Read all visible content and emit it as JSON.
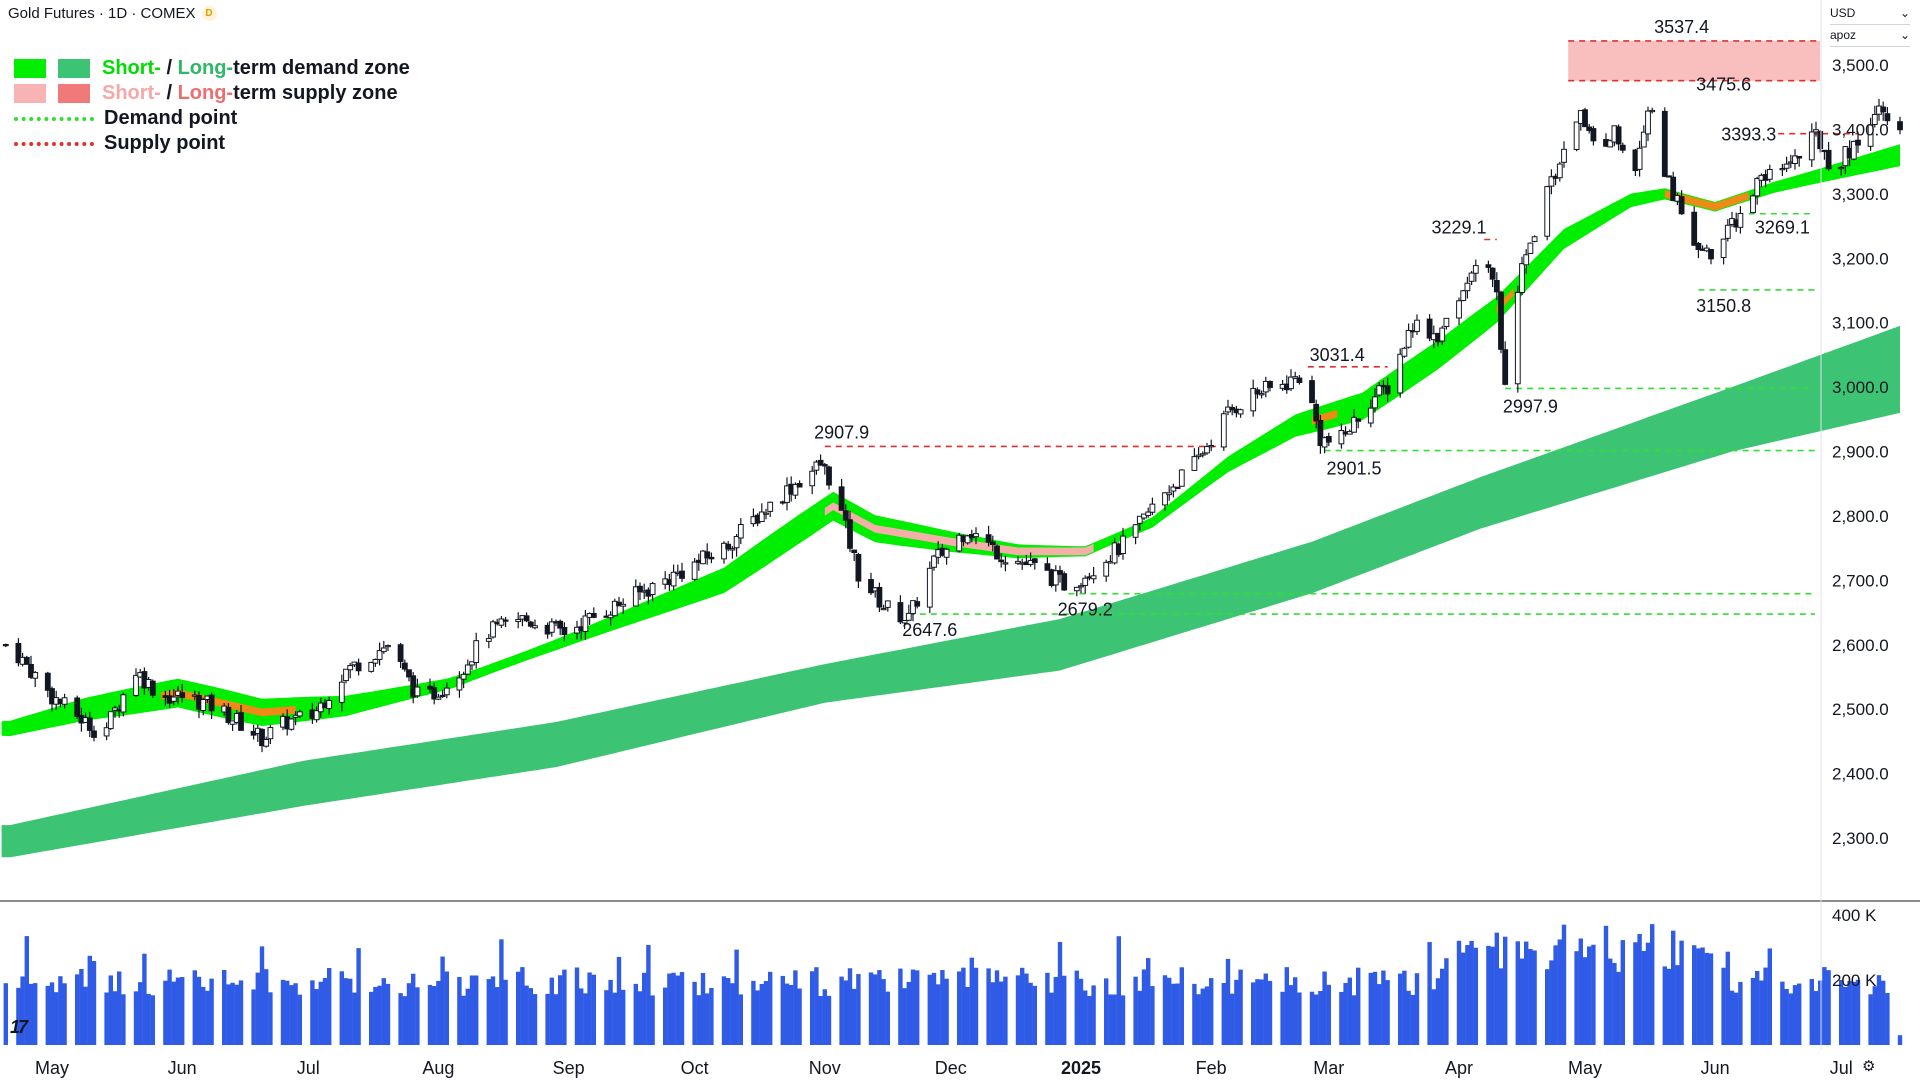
{
  "header": {
    "title": "Gold Futures · 1D · COMEX",
    "badge": "D"
  },
  "price_scale": {
    "currency": "USD",
    "mode": "apoz"
  },
  "legend": {
    "demand_zone": {
      "short": "Short-",
      "sep": " / ",
      "long": "Long-",
      "rest": "term demand zone"
    },
    "supply_zone": {
      "short": "Short-",
      "sep": " / ",
      "long": "Long-",
      "rest": "term supply zone"
    },
    "demand_point": "Demand point",
    "supply_point": "Supply point"
  },
  "colors": {
    "short_demand": "#00ee00",
    "long_demand": "#3cc474",
    "short_supply": "#f8b4b4",
    "long_supply": "#f07a7a",
    "demand_point": "#33dd33",
    "supply_point": "#e03030",
    "volume": "#2f5be6",
    "orange": "#ef8a17"
  },
  "footer": {
    "logo": "17"
  },
  "chart_data": {
    "type": "candlestick",
    "instrument": "Gold Futures",
    "interval": "1D",
    "exchange": "COMEX",
    "ylim": [
      2220,
      3560
    ],
    "yticks": [
      "2,300.0",
      "2,400.0",
      "2,500.0",
      "2,600.0",
      "2,700.0",
      "2,800.0",
      "2,900.0",
      "3,000.0",
      "3,100.0",
      "3,200.0",
      "3,300.0",
      "3,400.0",
      "3,500.0"
    ],
    "ytick_values": [
      2300,
      2400,
      2500,
      2600,
      2700,
      2800,
      2900,
      3000,
      3100,
      3200,
      3300,
      3400,
      3500
    ],
    "xticks": [
      "May",
      "Jun",
      "Jul",
      "Aug",
      "Sep",
      "Oct",
      "Nov",
      "Dec",
      "2025",
      "Feb",
      "Mar",
      "Apr",
      "May",
      "Jun",
      "Jul"
    ],
    "xtick_days": [
      0,
      31,
      61,
      92,
      123,
      153,
      184,
      214,
      245,
      276,
      304,
      335,
      365,
      396,
      426
    ],
    "x_start": "2024-05-01",
    "price_anchors": [
      [
        -10,
        2600
      ],
      [
        0,
        2520
      ],
      [
        12,
        2460
      ],
      [
        20,
        2560
      ],
      [
        26,
        2520
      ],
      [
        32,
        2520
      ],
      [
        40,
        2500
      ],
      [
        50,
        2455
      ],
      [
        56,
        2480
      ],
      [
        62,
        2490
      ],
      [
        70,
        2560
      ],
      [
        80,
        2600
      ],
      [
        88,
        2510
      ],
      [
        96,
        2550
      ],
      [
        104,
        2620
      ],
      [
        112,
        2640
      ],
      [
        122,
        2620
      ],
      [
        134,
        2660
      ],
      [
        146,
        2700
      ],
      [
        160,
        2750
      ],
      [
        168,
        2800
      ],
      [
        175,
        2840
      ],
      [
        183,
        2880
      ],
      [
        186,
        2850
      ],
      [
        192,
        2710
      ],
      [
        198,
        2660
      ],
      [
        204,
        2640
      ],
      [
        210,
        2730
      ],
      [
        218,
        2780
      ],
      [
        226,
        2740
      ],
      [
        234,
        2720
      ],
      [
        242,
        2690
      ],
      [
        248,
        2720
      ],
      [
        256,
        2760
      ],
      [
        264,
        2830
      ],
      [
        272,
        2880
      ],
      [
        280,
        2960
      ],
      [
        286,
        2990
      ],
      [
        292,
        3000
      ],
      [
        298,
        3020
      ],
      [
        302,
        2920
      ],
      [
        306,
        2910
      ],
      [
        314,
        2980
      ],
      [
        318,
        3000
      ],
      [
        324,
        3100
      ],
      [
        330,
        3080
      ],
      [
        336,
        3150
      ],
      [
        340,
        3210
      ],
      [
        344,
        3140
      ],
      [
        346,
        3000
      ],
      [
        350,
        3180
      ],
      [
        356,
        3300
      ],
      [
        362,
        3410
      ],
      [
        364,
        3430
      ],
      [
        368,
        3360
      ],
      [
        372,
        3400
      ],
      [
        376,
        3310
      ],
      [
        382,
        3470
      ],
      [
        384,
        3330
      ],
      [
        388,
        3270
      ],
      [
        392,
        3220
      ],
      [
        396,
        3200
      ],
      [
        400,
        3250
      ],
      [
        404,
        3300
      ],
      [
        410,
        3340
      ],
      [
        416,
        3360
      ],
      [
        420,
        3390
      ],
      [
        424,
        3340
      ],
      [
        430,
        3380
      ],
      [
        432,
        3410
      ],
      [
        436,
        3440
      ],
      [
        440,
        3390
      ]
    ],
    "ma_anchors": [
      [
        -10,
        2470
      ],
      [
        8,
        2500
      ],
      [
        30,
        2525
      ],
      [
        50,
        2495
      ],
      [
        70,
        2505
      ],
      [
        95,
        2540
      ],
      [
        120,
        2600
      ],
      [
        140,
        2650
      ],
      [
        160,
        2700
      ],
      [
        178,
        2780
      ],
      [
        186,
        2815
      ],
      [
        196,
        2780
      ],
      [
        214,
        2760
      ],
      [
        230,
        2745
      ],
      [
        246,
        2745
      ],
      [
        262,
        2790
      ],
      [
        280,
        2880
      ],
      [
        296,
        2940
      ],
      [
        312,
        2970
      ],
      [
        330,
        3050
      ],
      [
        344,
        3120
      ],
      [
        360,
        3230
      ],
      [
        376,
        3290
      ],
      [
        384,
        3300
      ],
      [
        396,
        3280
      ],
      [
        410,
        3310
      ],
      [
        440,
        3360
      ]
    ],
    "long_band_top": [
      [
        -10,
        2320
      ],
      [
        60,
        2420
      ],
      [
        120,
        2480
      ],
      [
        184,
        2570
      ],
      [
        240,
        2640
      ],
      [
        300,
        2760
      ],
      [
        340,
        2860
      ],
      [
        400,
        3000
      ],
      [
        440,
        3095
      ]
    ],
    "long_band_bottom": [
      [
        -10,
        2270
      ],
      [
        60,
        2350
      ],
      [
        120,
        2410
      ],
      [
        184,
        2510
      ],
      [
        240,
        2560
      ],
      [
        300,
        2680
      ],
      [
        340,
        2780
      ],
      [
        400,
        2900
      ],
      [
        440,
        2960
      ]
    ],
    "supply_zone": {
      "top": 3537.4,
      "bottom": 3475.6
    },
    "supply_points": [
      {
        "label": "3537.4",
        "value": 3537.4
      },
      {
        "label": "3475.6",
        "value": 3475.6
      },
      {
        "label": "3393.3",
        "value": 3393.3
      },
      {
        "label": "3229.1",
        "value": 3229.1
      },
      {
        "label": "3031.4",
        "value": 3031.4
      },
      {
        "label": "2907.9",
        "value": 2907.9
      }
    ],
    "demand_points": [
      {
        "label": "3269.1",
        "value": 3269.1
      },
      {
        "label": "3150.8",
        "value": 3150.8
      },
      {
        "label": "2997.9",
        "value": 2997.9
      },
      {
        "label": "2901.5",
        "value": 2901.5
      },
      {
        "label": "2679.2",
        "value": 2679.2
      },
      {
        "label": "2647.6",
        "value": 2647.6
      }
    ],
    "volume": {
      "yticks": [
        "400 K",
        "200 K"
      ],
      "ytick_values": [
        400000,
        200000
      ],
      "ylim": [
        0,
        430000
      ]
    }
  }
}
